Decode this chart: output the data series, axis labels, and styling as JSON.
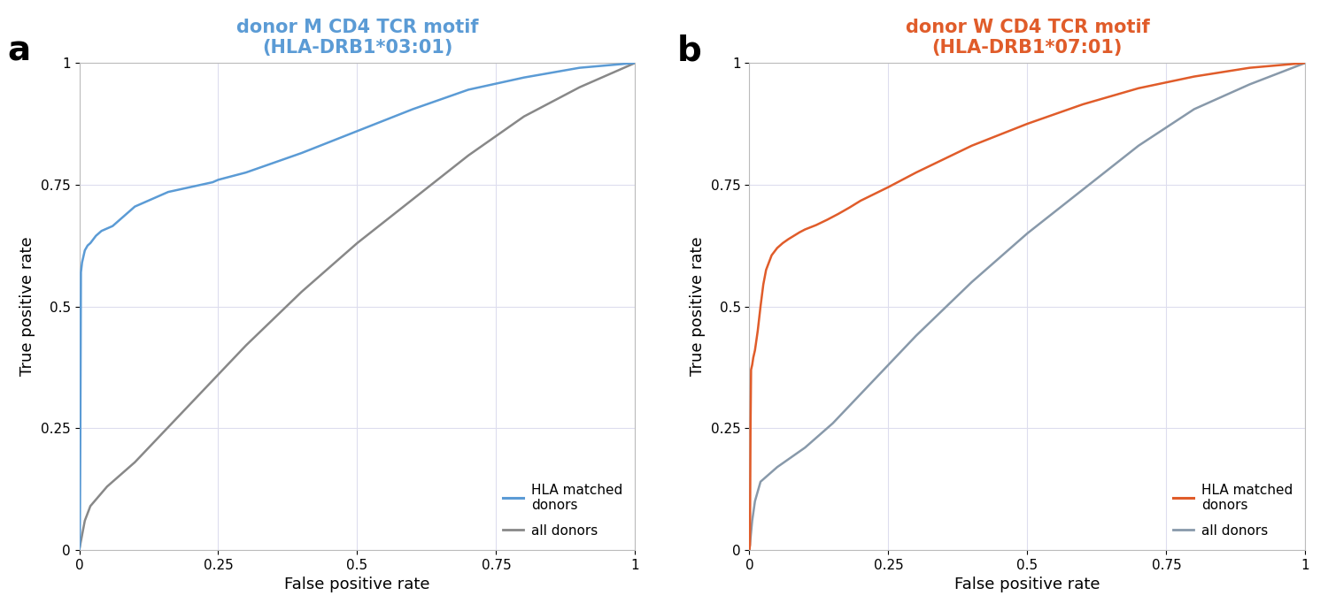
{
  "panel_a": {
    "title_line1": "donor M CD4 TCR motif",
    "title_line2": "(HLA-DRB1*03:01)",
    "title_color": "#5b9bd5",
    "label": "a",
    "roc_color": "#5b9bd5",
    "diag_color": "#888888",
    "roc_points": [
      [
        0,
        0
      ],
      [
        0.001,
        0.01
      ],
      [
        0.002,
        0.25
      ],
      [
        0.003,
        0.57
      ],
      [
        0.005,
        0.59
      ],
      [
        0.007,
        0.6
      ],
      [
        0.01,
        0.615
      ],
      [
        0.015,
        0.625
      ],
      [
        0.02,
        0.63
      ],
      [
        0.03,
        0.645
      ],
      [
        0.04,
        0.655
      ],
      [
        0.05,
        0.66
      ],
      [
        0.06,
        0.665
      ],
      [
        0.07,
        0.675
      ],
      [
        0.08,
        0.685
      ],
      [
        0.09,
        0.695
      ],
      [
        0.1,
        0.705
      ],
      [
        0.12,
        0.715
      ],
      [
        0.14,
        0.725
      ],
      [
        0.16,
        0.735
      ],
      [
        0.18,
        0.74
      ],
      [
        0.2,
        0.745
      ],
      [
        0.22,
        0.75
      ],
      [
        0.24,
        0.755
      ],
      [
        0.25,
        0.76
      ],
      [
        0.3,
        0.775
      ],
      [
        0.35,
        0.795
      ],
      [
        0.4,
        0.815
      ],
      [
        0.5,
        0.86
      ],
      [
        0.6,
        0.905
      ],
      [
        0.7,
        0.945
      ],
      [
        0.8,
        0.97
      ],
      [
        0.9,
        0.99
      ],
      [
        1.0,
        1.0
      ]
    ],
    "diag_points": [
      [
        0,
        0
      ],
      [
        0.005,
        0.03
      ],
      [
        0.01,
        0.06
      ],
      [
        0.02,
        0.09
      ],
      [
        0.05,
        0.13
      ],
      [
        0.1,
        0.18
      ],
      [
        0.15,
        0.24
      ],
      [
        0.2,
        0.3
      ],
      [
        0.25,
        0.36
      ],
      [
        0.3,
        0.42
      ],
      [
        0.4,
        0.53
      ],
      [
        0.5,
        0.63
      ],
      [
        0.6,
        0.72
      ],
      [
        0.7,
        0.81
      ],
      [
        0.8,
        0.89
      ],
      [
        0.9,
        0.95
      ],
      [
        1.0,
        1.0
      ]
    ]
  },
  "panel_b": {
    "title_line1": "donor W CD4 TCR motif",
    "title_line2": "(HLA-DRB1*07:01)",
    "title_color": "#e05c2a",
    "label": "b",
    "roc_color": "#e05c2a",
    "diag_color": "#8899aa",
    "roc_points": [
      [
        0,
        0
      ],
      [
        0.001,
        0.01
      ],
      [
        0.002,
        0.25
      ],
      [
        0.003,
        0.37
      ],
      [
        0.005,
        0.38
      ],
      [
        0.007,
        0.395
      ],
      [
        0.01,
        0.41
      ],
      [
        0.015,
        0.45
      ],
      [
        0.02,
        0.5
      ],
      [
        0.025,
        0.545
      ],
      [
        0.03,
        0.575
      ],
      [
        0.04,
        0.605
      ],
      [
        0.05,
        0.62
      ],
      [
        0.06,
        0.63
      ],
      [
        0.07,
        0.638
      ],
      [
        0.08,
        0.645
      ],
      [
        0.09,
        0.652
      ],
      [
        0.1,
        0.658
      ],
      [
        0.12,
        0.667
      ],
      [
        0.14,
        0.678
      ],
      [
        0.16,
        0.69
      ],
      [
        0.18,
        0.703
      ],
      [
        0.2,
        0.717
      ],
      [
        0.25,
        0.745
      ],
      [
        0.3,
        0.775
      ],
      [
        0.4,
        0.83
      ],
      [
        0.5,
        0.875
      ],
      [
        0.6,
        0.915
      ],
      [
        0.7,
        0.948
      ],
      [
        0.8,
        0.972
      ],
      [
        0.9,
        0.99
      ],
      [
        1.0,
        1.0
      ]
    ],
    "diag_points": [
      [
        0,
        0
      ],
      [
        0.005,
        0.06
      ],
      [
        0.01,
        0.1
      ],
      [
        0.02,
        0.14
      ],
      [
        0.05,
        0.17
      ],
      [
        0.1,
        0.21
      ],
      [
        0.15,
        0.26
      ],
      [
        0.2,
        0.32
      ],
      [
        0.25,
        0.38
      ],
      [
        0.3,
        0.44
      ],
      [
        0.4,
        0.55
      ],
      [
        0.5,
        0.65
      ],
      [
        0.6,
        0.74
      ],
      [
        0.7,
        0.83
      ],
      [
        0.8,
        0.905
      ],
      [
        0.9,
        0.956
      ],
      [
        1.0,
        1.0
      ]
    ]
  },
  "xlabel": "False positive rate",
  "ylabel": "True positive rate",
  "xlim": [
    0,
    1
  ],
  "ylim": [
    0,
    1
  ],
  "xticks": [
    0,
    0.25,
    0.5,
    0.75,
    1
  ],
  "yticks": [
    0,
    0.25,
    0.5,
    0.75,
    1
  ],
  "xticklabels": [
    "0",
    "0.25",
    "0.5",
    "0.75",
    "1"
  ],
  "yticklabels": [
    "0",
    "0.25",
    "0.5",
    "0.75",
    "1"
  ],
  "grid_color": "#ddddee",
  "bg_color": "#ffffff",
  "legend_hla_label": "HLA matched\ndonors",
  "legend_all_label": "all donors",
  "roc_linewidth": 1.8,
  "diag_linewidth": 1.8,
  "label_fontsize": 28,
  "title_fontsize": 15,
  "axis_label_fontsize": 13,
  "tick_fontsize": 11
}
